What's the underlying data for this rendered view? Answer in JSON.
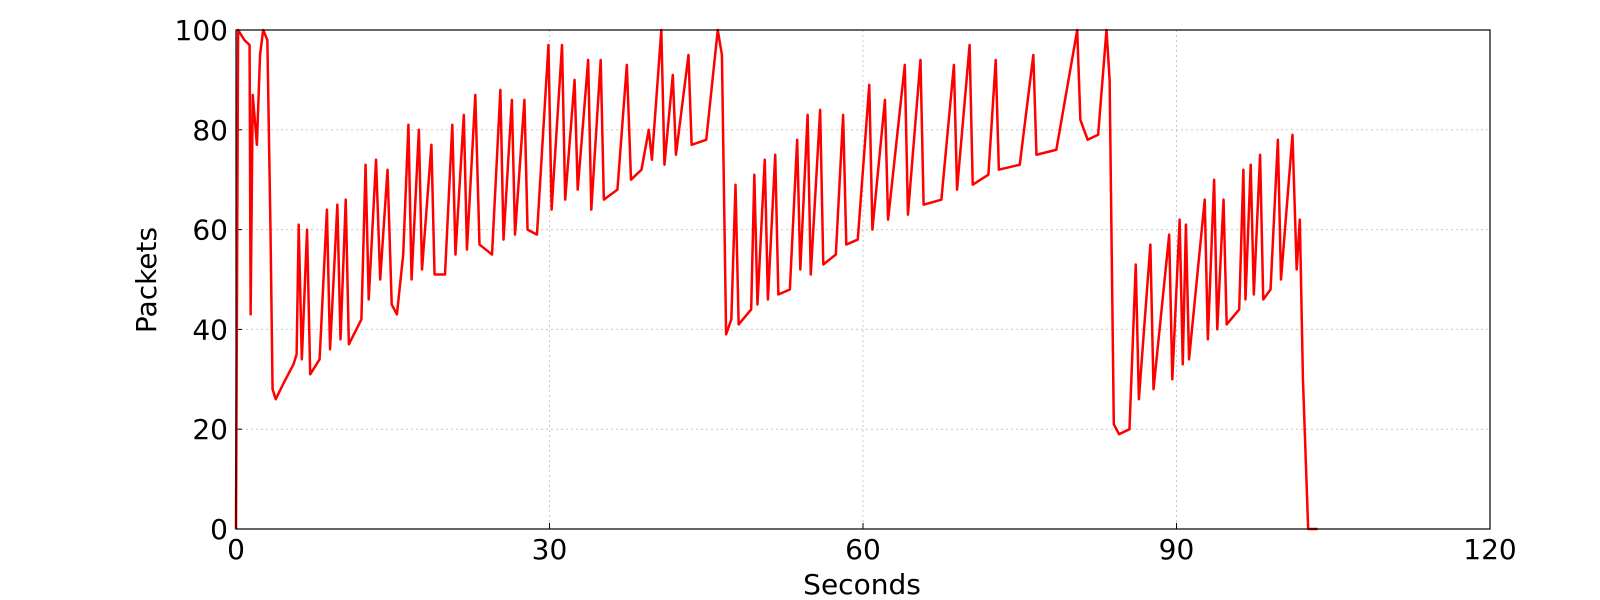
{
  "chart_data": {
    "type": "line",
    "x_label": "Seconds",
    "y_label": "Packets",
    "xlim": [
      0,
      120
    ],
    "ylim": [
      0,
      100
    ],
    "xticks": [
      0,
      30,
      60,
      90,
      120
    ],
    "yticks": [
      0,
      20,
      40,
      60,
      80,
      100
    ],
    "grid": true,
    "series": [
      {
        "color": "#ff0000",
        "x": [
          0,
          0.2,
          0.8,
          1.3,
          1.4,
          1.6,
          2.0,
          2.3,
          2.6,
          3.0,
          3.3,
          3.5,
          3.8,
          4.5,
          5.5,
          5.8,
          6.0,
          6.3,
          6.8,
          7.1,
          8.0,
          8.7,
          9.0,
          9.7,
          10.0,
          10.5,
          10.8,
          12.0,
          12.4,
          12.7,
          13.4,
          13.8,
          14.5,
          14.9,
          15.4,
          16.0,
          16.5,
          16.8,
          17.5,
          17.8,
          18.7,
          19.0,
          20.0,
          20.7,
          21.0,
          21.8,
          22.1,
          22.9,
          23.3,
          24.5,
          25.3,
          25.6,
          26.4,
          26.7,
          27.6,
          27.9,
          28.8,
          29.9,
          30.2,
          31.2,
          31.5,
          32.4,
          32.7,
          33.7,
          34.0,
          34.9,
          35.2,
          36.5,
          37.4,
          37.8,
          38.8,
          39.5,
          39.8,
          40.7,
          41.0,
          41.8,
          42.1,
          43.3,
          43.6,
          45.0,
          46.1,
          46.5,
          46.9,
          47.4,
          47.8,
          48.1,
          49.3,
          49.6,
          49.9,
          50.6,
          50.9,
          51.6,
          51.9,
          53.0,
          53.7,
          54.0,
          54.7,
          55.0,
          55.9,
          56.2,
          57.4,
          58.1,
          58.4,
          59.5,
          60.6,
          60.9,
          62.1,
          62.4,
          64.0,
          64.3,
          65.5,
          65.8,
          67.5,
          68.7,
          69.0,
          70.2,
          70.5,
          72.0,
          72.7,
          73.0,
          75.0,
          76.3,
          76.6,
          78.5,
          80.5,
          80.8,
          81.5,
          82.5,
          83.3,
          83.6,
          84.0,
          84.5,
          85.5,
          86.1,
          86.4,
          87.5,
          87.8,
          89.3,
          89.6,
          90.3,
          90.6,
          90.9,
          91.2,
          92.7,
          93.0,
          93.6,
          93.9,
          94.5,
          94.8,
          96.0,
          96.4,
          96.6,
          97.1,
          97.4,
          98.0,
          98.3,
          99.0,
          99.7,
          100.0,
          101.1,
          101.5,
          101.8,
          102.1,
          102.6,
          103.5
        ],
        "values": [
          0,
          100,
          98,
          97,
          43,
          87,
          77,
          95,
          100,
          98,
          60,
          28,
          26,
          29,
          33,
          35,
          61,
          34,
          60,
          31,
          34,
          64,
          36,
          65,
          38,
          66,
          37,
          42,
          73,
          46,
          74,
          50,
          72,
          45,
          43,
          55,
          81,
          50,
          80,
          52,
          77,
          51,
          51,
          81,
          55,
          83,
          56,
          87,
          57,
          55,
          88,
          58,
          86,
          59,
          86,
          60,
          59,
          97,
          64,
          97,
          66,
          90,
          68,
          94,
          64,
          94,
          66,
          68,
          93,
          70,
          72,
          80,
          74,
          100,
          73,
          91,
          75,
          95,
          77,
          78,
          100,
          95,
          39,
          42,
          69,
          41,
          44,
          71,
          45,
          74,
          46,
          75,
          47,
          48,
          78,
          52,
          83,
          51,
          84,
          53,
          55,
          83,
          57,
          58,
          89,
          60,
          86,
          62,
          93,
          63,
          94,
          65,
          66,
          93,
          68,
          97,
          69,
          71,
          94,
          72,
          73,
          95,
          75,
          76,
          100,
          82,
          78,
          79,
          100,
          90,
          21,
          19,
          20,
          53,
          26,
          57,
          28,
          59,
          30,
          62,
          33,
          61,
          34,
          66,
          38,
          70,
          40,
          66,
          41,
          44,
          72,
          46,
          73,
          47,
          75,
          46,
          48,
          78,
          50,
          79,
          52,
          62,
          30,
          0,
          0
        ]
      }
    ]
  }
}
